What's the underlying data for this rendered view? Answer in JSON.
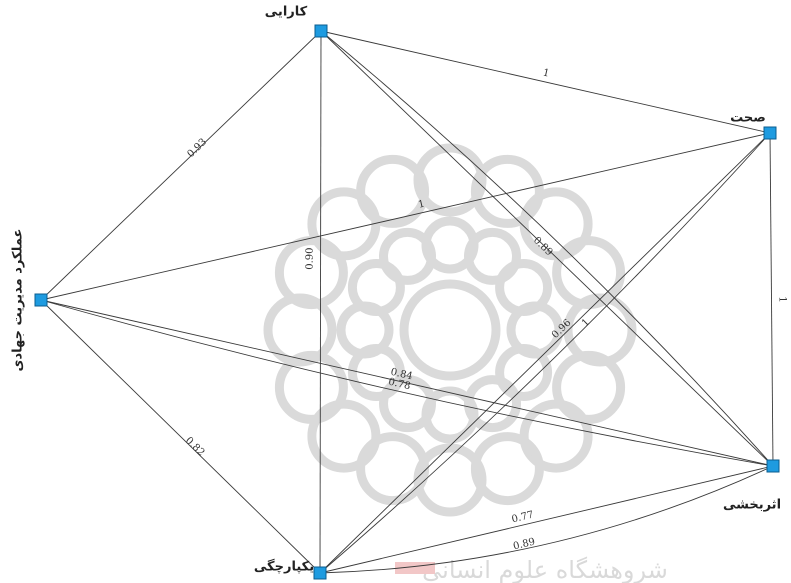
{
  "colors": {
    "edge": "#3a3a3a",
    "node_fill": "#1e9be0",
    "node_stroke": "#0b5e8f",
    "watermark": "#dadada",
    "watermark_accent": "#f2c7c7"
  },
  "watermark": {
    "icon": "geometric-rosette-logo",
    "text": "ﺷﺮﻭﻫﺸﮕﺎﻩ ﻋﻠﻮﻡ ﺍﻧﺴﺎﻧﯽ"
  },
  "nodes": [
    {
      "id": "karaei",
      "label": "کارایی"
    },
    {
      "id": "sehat",
      "label": "صحت"
    },
    {
      "id": "amalkard",
      "label": "عملکرد مدیریت جهادی"
    },
    {
      "id": "asarbakhshi",
      "label": "اثربخشی"
    },
    {
      "id": "yekparchegi",
      "label": "یکپارچگی"
    }
  ],
  "edges": [
    {
      "from": "karaei",
      "to": "sehat",
      "label": "1"
    },
    {
      "from": "karaei",
      "to": "amalkard",
      "label": "0.93"
    },
    {
      "from": "karaei",
      "to": "yekparchegi",
      "label": "0.90"
    },
    {
      "from": "karaei",
      "to": "asarbakhshi",
      "label": "0.89"
    },
    {
      "from": "karaei",
      "to": "asarbakhshi",
      "label": ""
    },
    {
      "from": "amalkard",
      "to": "sehat",
      "label": "1"
    },
    {
      "from": "amalkard",
      "to": "asarbakhshi",
      "label": "0.84"
    },
    {
      "from": "amalkard",
      "to": "asarbakhshi",
      "label": "0.78"
    },
    {
      "from": "amalkard",
      "to": "yekparchegi",
      "label": "0.82"
    },
    {
      "from": "sehat",
      "to": "asarbakhshi",
      "label": "1"
    },
    {
      "from": "sehat",
      "to": "yekparchegi",
      "label": "0.96"
    },
    {
      "from": "sehat",
      "to": "yekparchegi",
      "label": "1"
    },
    {
      "from": "yekparchegi",
      "to": "asarbakhshi",
      "label": "0.77"
    },
    {
      "from": "yekparchegi",
      "to": "asarbakhshi",
      "label": "0.89"
    }
  ]
}
